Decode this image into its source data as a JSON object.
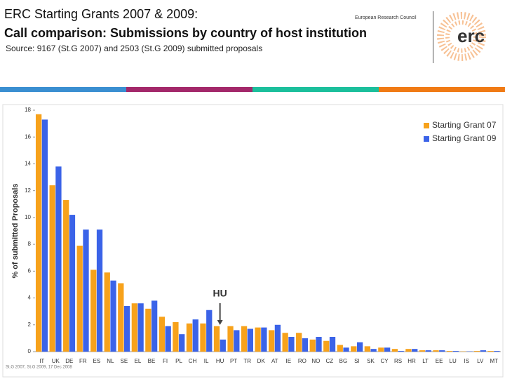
{
  "header": {
    "title_line1": "ERC Starting Grants 2007 & 2009:",
    "organisation": "European Research Council",
    "title_line2": "Call comparison: Submissions by country of host institution",
    "source": "Source: 9167 (St.G 2007) and 2503 (St.G 2009) submitted proposals",
    "logo": "erc"
  },
  "chart_data": {
    "type": "bar",
    "y_label": "% of submitted Proposals",
    "categories": [
      "IT",
      "UK",
      "DE",
      "FR",
      "ES",
      "NL",
      "SE",
      "EL",
      "BE",
      "FI",
      "PL",
      "CH",
      "IL",
      "HU",
      "PT",
      "TR",
      "DK",
      "AT",
      "IE",
      "RO",
      "NO",
      "CZ",
      "BG",
      "SI",
      "SK",
      "CY",
      "RS",
      "HR",
      "LT",
      "EE",
      "LU",
      "IS",
      "LV",
      "MT"
    ],
    "series": [
      {
        "name": "Starting Grant 07",
        "color": "#f7a21b",
        "values": [
          17.7,
          12.4,
          11.3,
          7.9,
          6.1,
          5.9,
          5.1,
          3.6,
          3.2,
          2.6,
          2.2,
          2.1,
          2.1,
          1.9,
          1.9,
          1.9,
          1.8,
          1.6,
          1.4,
          1.4,
          0.9,
          0.8,
          0.5,
          0.4,
          0.4,
          0.3,
          0.2,
          0.2,
          0.1,
          0.1,
          0.05,
          0.02,
          0.05,
          0.05
        ]
      },
      {
        "name": "Starting Grant 09",
        "color": "#3b63e8",
        "values": [
          17.3,
          13.8,
          10.2,
          9.1,
          9.1,
          5.3,
          3.4,
          3.6,
          3.8,
          1.9,
          1.3,
          2.4,
          3.1,
          0.9,
          1.6,
          1.7,
          1.8,
          2.0,
          1.1,
          1.0,
          1.1,
          1.1,
          0.3,
          0.7,
          0.2,
          0.3,
          0.05,
          0.2,
          0.1,
          0.1,
          0.05,
          0.02,
          0.1,
          0.05
        ]
      }
    ],
    "ylim": [
      0,
      18
    ],
    "yticks": [
      0,
      2,
      4,
      6,
      8,
      10,
      12,
      14,
      16,
      18
    ],
    "legend": "top-right",
    "annotation": "HU",
    "footnote": "St.G 2007, St.G 2009, 17 Dec 2008"
  }
}
